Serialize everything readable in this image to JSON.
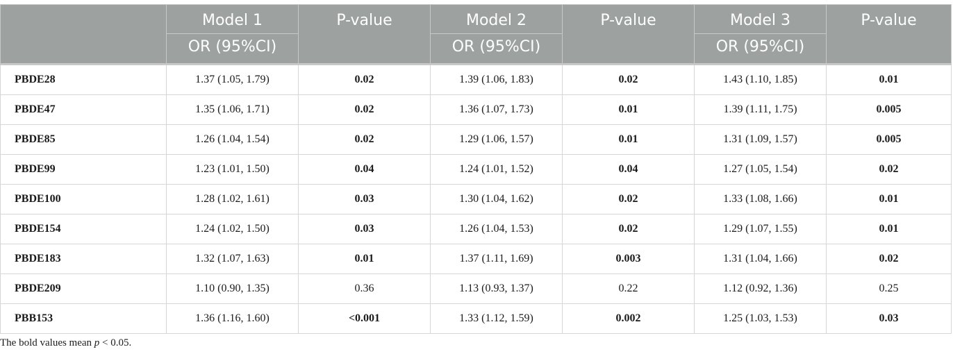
{
  "colors": {
    "header_bg": "#9da2a0",
    "header_text": "#ffffff"
  },
  "header": {
    "model1": "Model 1",
    "model2": "Model 2",
    "model3": "Model 3",
    "pvalue": "P-value",
    "orci": "OR (95%CI)"
  },
  "rows": [
    {
      "label": "PBDE28",
      "m1": "1.37 (1.05, 1.79)",
      "p1": "0.02",
      "p1_bold": true,
      "m2": "1.39 (1.06, 1.83)",
      "p2": "0.02",
      "p2_bold": true,
      "m3": "1.43 (1.10, 1.85)",
      "p3": "0.01",
      "p3_bold": true
    },
    {
      "label": "PBDE47",
      "m1": "1.35 (1.06, 1.71)",
      "p1": "0.02",
      "p1_bold": true,
      "m2": "1.36 (1.07, 1.73)",
      "p2": "0.01",
      "p2_bold": true,
      "m3": "1.39 (1.11, 1.75)",
      "p3": "0.005",
      "p3_bold": true
    },
    {
      "label": "PBDE85",
      "m1": "1.26 (1.04, 1.54)",
      "p1": "0.02",
      "p1_bold": true,
      "m2": "1.29 (1.06, 1.57)",
      "p2": "0.01",
      "p2_bold": true,
      "m3": "1.31 (1.09, 1.57)",
      "p3": "0.005",
      "p3_bold": true
    },
    {
      "label": "PBDE99",
      "m1": "1.23 (1.01, 1.50)",
      "p1": "0.04",
      "p1_bold": true,
      "m2": "1.24 (1.01, 1.52)",
      "p2": "0.04",
      "p2_bold": true,
      "m3": "1.27 (1.05, 1.54)",
      "p3": "0.02",
      "p3_bold": true
    },
    {
      "label": "PBDE100",
      "m1": "1.28 (1.02, 1.61)",
      "p1": "0.03",
      "p1_bold": true,
      "m2": "1.30 (1.04, 1.62)",
      "p2": "0.02",
      "p2_bold": true,
      "m3": "1.33 (1.08, 1.66)",
      "p3": "0.01",
      "p3_bold": true
    },
    {
      "label": "PBDE154",
      "m1": "1.24 (1.02, 1.50)",
      "p1": "0.03",
      "p1_bold": true,
      "m2": "1.26 (1.04, 1.53)",
      "p2": "0.02",
      "p2_bold": true,
      "m3": "1.29 (1.07, 1.55)",
      "p3": "0.01",
      "p3_bold": true
    },
    {
      "label": "PBDE183",
      "m1": "1.32 (1.07, 1.63)",
      "p1": "0.01",
      "p1_bold": true,
      "m2": "1.37 (1.11, 1.69)",
      "p2": "0.003",
      "p2_bold": true,
      "m3": "1.31 (1.04, 1.66)",
      "p3": "0.02",
      "p3_bold": true
    },
    {
      "label": "PBDE209",
      "m1": "1.10 (0.90, 1.35)",
      "p1": "0.36",
      "p1_bold": false,
      "m2": "1.13 (0.93, 1.37)",
      "p2": "0.22",
      "p2_bold": false,
      "m3": "1.12 (0.92, 1.36)",
      "p3": "0.25",
      "p3_bold": false
    },
    {
      "label": "PBB153",
      "m1": "1.36 (1.16, 1.60)",
      "p1": "<0.001",
      "p1_bold": true,
      "m2": "1.33 (1.12, 1.59)",
      "p2": "0.002",
      "p2_bold": true,
      "m3": "1.25 (1.03, 1.53)",
      "p3": "0.03",
      "p3_bold": true
    }
  ],
  "footnote": {
    "prefix": "The bold values mean ",
    "var": "p",
    "suffix": " < 0.05."
  }
}
